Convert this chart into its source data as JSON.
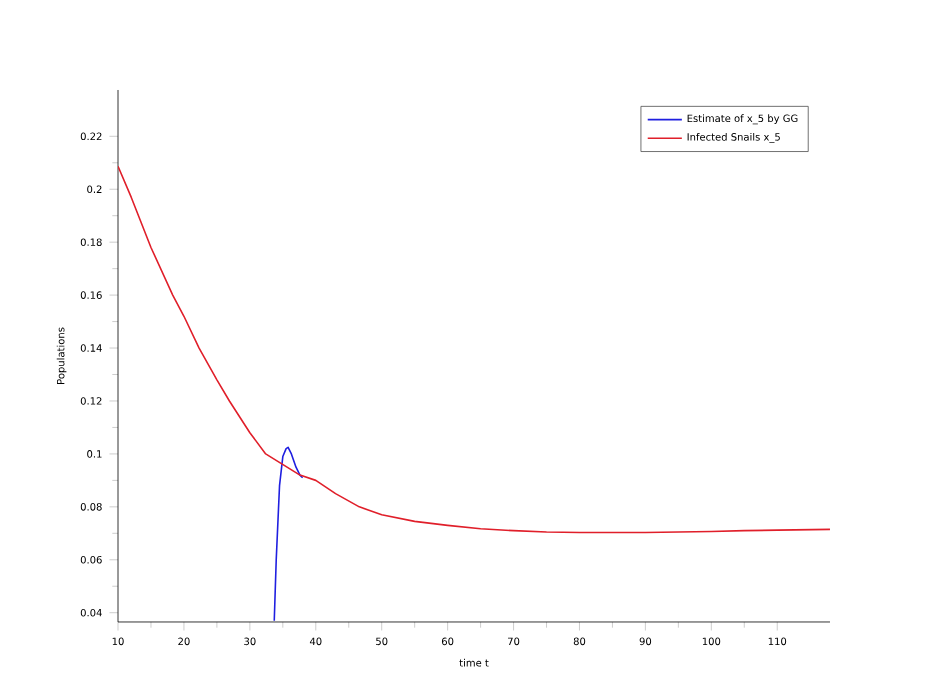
{
  "chart_data": {
    "type": "line",
    "xlabel": "time t",
    "ylabel": "Populations",
    "xlim": [
      10,
      118
    ],
    "ylim": [
      0.0365,
      0.2375
    ],
    "xticks": [
      10,
      20,
      30,
      40,
      50,
      60,
      70,
      80,
      90,
      100,
      110
    ],
    "yticks": [
      0.04,
      0.06,
      0.08,
      0.1,
      0.12,
      0.14,
      0.16,
      0.18,
      0.2,
      0.22
    ],
    "legend": "top right",
    "grid": false,
    "series": [
      {
        "name": "Estimate of x_5 by GG",
        "color": "#1f1fe0",
        "x": [
          33.7,
          34.0,
          34.5,
          35.0,
          35.5,
          35.8,
          36.3,
          37.0,
          37.6,
          38.0
        ],
        "values": [
          0.037,
          0.06,
          0.088,
          0.099,
          0.102,
          0.1025,
          0.1,
          0.095,
          0.092,
          0.091
        ]
      },
      {
        "name": "Infected Snails x_5",
        "color": "#e01f2a",
        "x": [
          10,
          12,
          15,
          18.3,
          20,
          22.3,
          25,
          26.9,
          30,
          32.4,
          35,
          37.6,
          40,
          43,
          46.6,
          50,
          55,
          60,
          65,
          70,
          75,
          80,
          85,
          90,
          95,
          100,
          105,
          110,
          118
        ],
        "values": [
          0.2087,
          0.197,
          0.178,
          0.16,
          0.152,
          0.14,
          0.128,
          0.12,
          0.108,
          0.1,
          0.096,
          0.092,
          0.09,
          0.085,
          0.08,
          0.077,
          0.0745,
          0.073,
          0.0717,
          0.071,
          0.0705,
          0.0703,
          0.0703,
          0.0703,
          0.0705,
          0.0707,
          0.071,
          0.0712,
          0.0715
        ]
      }
    ]
  }
}
